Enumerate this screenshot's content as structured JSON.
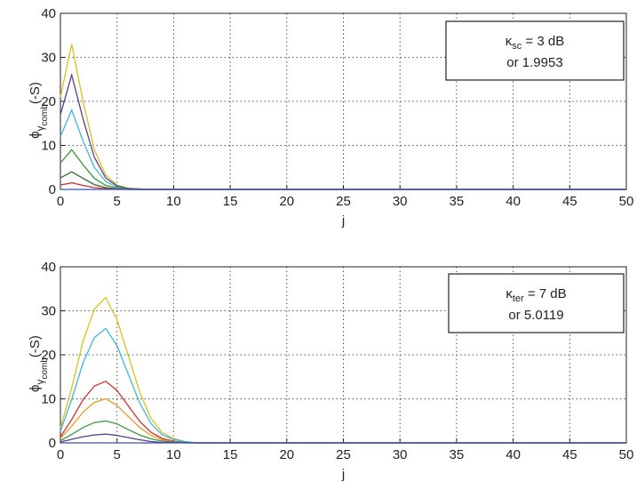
{
  "chart_data": [
    {
      "type": "line",
      "xlabel": "j",
      "ylabel": {
        "symbol": "ϕ",
        "sub": "γ",
        "subsub": "comb",
        "suffix": "(-S)"
      },
      "annotation": {
        "symbol": "κ",
        "sub": "sc",
        "rest": " = 3 dB",
        "line2": "or 1.9953"
      },
      "x": [
        0,
        1,
        2,
        3,
        4,
        5,
        6,
        7,
        8,
        9,
        10,
        11,
        12,
        50
      ],
      "xlim": [
        0,
        50
      ],
      "xticks": [
        0,
        5,
        10,
        15,
        20,
        25,
        30,
        35,
        40,
        45,
        50
      ],
      "ylim": [
        0,
        40
      ],
      "yticks": [
        0,
        10,
        20,
        30,
        40
      ],
      "grid": true,
      "series": [
        {
          "color": "#d8c21a",
          "values": [
            21,
            33,
            20,
            9,
            3.3,
            1,
            0.3,
            0.1,
            0,
            0,
            0,
            0,
            0,
            0
          ]
        },
        {
          "color": "#5a3c8c",
          "values": [
            17,
            26,
            16,
            7.3,
            2.6,
            0.8,
            0.2,
            0.1,
            0,
            0,
            0,
            0,
            0,
            0
          ]
        },
        {
          "color": "#3fb6e0",
          "values": [
            12,
            18,
            11,
            5,
            1.8,
            0.5,
            0.1,
            0,
            0,
            0,
            0,
            0,
            0,
            0
          ]
        },
        {
          "color": "#3a9a3a",
          "values": [
            6,
            9,
            5.6,
            2.5,
            0.9,
            0.3,
            0.1,
            0,
            0,
            0,
            0,
            0,
            0,
            0
          ]
        },
        {
          "color": "#2e6b2e",
          "values": [
            2.6,
            4,
            2.5,
            1.1,
            0.4,
            0.1,
            0,
            0,
            0,
            0,
            0,
            0,
            0,
            0
          ]
        },
        {
          "color": "#d03030",
          "values": [
            1,
            1.5,
            0.9,
            0.4,
            0.2,
            0.1,
            0,
            0,
            0,
            0,
            0,
            0,
            0,
            0
          ]
        },
        {
          "color": "#3050c0",
          "values": [
            0,
            0,
            0,
            0,
            0,
            0,
            0,
            0,
            0,
            0,
            0,
            0,
            0,
            0
          ]
        }
      ]
    },
    {
      "type": "line",
      "xlabel": "j",
      "ylabel": {
        "symbol": "ϕ",
        "sub": "γ",
        "subsub": "comb",
        "suffix": "(-S)"
      },
      "annotation": {
        "symbol": "κ",
        "sub": "ter",
        "rest": " = 7 dB",
        "line2": "or 5.0119"
      },
      "x": [
        0,
        1,
        2,
        3,
        4,
        5,
        6,
        7,
        8,
        9,
        10,
        11,
        12,
        50
      ],
      "xlim": [
        0,
        50
      ],
      "xticks": [
        0,
        5,
        10,
        15,
        20,
        25,
        30,
        35,
        40,
        45,
        50
      ],
      "ylim": [
        0,
        40
      ],
      "yticks": [
        0,
        10,
        20,
        30,
        40
      ],
      "grid": true,
      "series": [
        {
          "color": "#d8c21a",
          "values": [
            3.3,
            12.5,
            23.1,
            30.4,
            33,
            28,
            19.8,
            11.6,
            5.6,
            2.3,
            1,
            0.3,
            0,
            0
          ]
        },
        {
          "color": "#3fb6e0",
          "values": [
            2.6,
            9.9,
            18.2,
            23.9,
            26,
            22.1,
            15.6,
            9.1,
            4.4,
            1.8,
            0.8,
            0.3,
            0,
            0
          ]
        },
        {
          "color": "#d03030",
          "values": [
            1.4,
            5.3,
            9.8,
            12.9,
            14,
            11.9,
            8.4,
            4.9,
            2.4,
            1,
            0.4,
            0.1,
            0,
            0
          ]
        },
        {
          "color": "#e89a2a",
          "values": [
            1,
            3.8,
            7,
            9.2,
            10,
            8.5,
            6,
            3.5,
            1.7,
            0.7,
            0.3,
            0.1,
            0,
            0
          ]
        },
        {
          "color": "#3a9a3a",
          "values": [
            0.5,
            1.9,
            3.5,
            4.6,
            5,
            4.3,
            3,
            1.8,
            0.9,
            0.4,
            0.2,
            0.1,
            0,
            0
          ]
        },
        {
          "color": "#5a3c8c",
          "values": [
            0.2,
            0.8,
            1.4,
            1.8,
            2,
            1.7,
            1.2,
            0.7,
            0.3,
            0.1,
            0.1,
            0,
            0,
            0
          ]
        },
        {
          "color": "#3050c0",
          "values": [
            0,
            0,
            0,
            0,
            0,
            0,
            0,
            0,
            0,
            0,
            0,
            0,
            0,
            0
          ]
        }
      ]
    }
  ]
}
